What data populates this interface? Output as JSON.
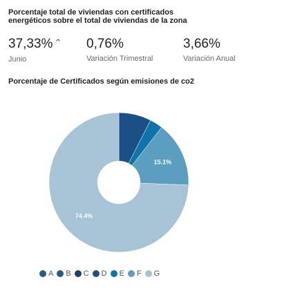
{
  "header": {
    "title": "Porcentaje total de viviendas con certificados energéticos sobre el total de viviendas de la zona"
  },
  "stats": [
    {
      "value": "37,33%",
      "trend_icon": "caret-up-icon",
      "trend_glyph": "⌃",
      "label": "Junio"
    },
    {
      "value": "0,76%",
      "label": "Variación Trimestral"
    },
    {
      "value": "3,66%",
      "label": "Variación Anual"
    }
  ],
  "chart_data": {
    "type": "pie",
    "title": "Porcentaje de Certificados según emisiones de co2",
    "donut": true,
    "start_angle_deg": 0,
    "slices": [
      {
        "name": "A",
        "value": 0,
        "color": "#2a5a8c"
      },
      {
        "name": "B",
        "value": 0,
        "color": "#2a5a8c"
      },
      {
        "name": "C",
        "value": 0,
        "color": "#1c3f6e"
      },
      {
        "name": "D",
        "value": 7.5,
        "color": "#1c4f85",
        "label": ""
      },
      {
        "name": "E",
        "value": 3.0,
        "color": "#0f74a9",
        "label": ""
      },
      {
        "name": "F",
        "value": 15.1,
        "color": "#5b9ec0",
        "label": "15.1%"
      },
      {
        "name": "G",
        "value": 74.4,
        "color": "#a7c4d6",
        "label": "74.4%"
      }
    ],
    "legend": {
      "position": "bottom-left",
      "items": [
        "A",
        "B",
        "C",
        "D",
        "E",
        "F",
        "G"
      ]
    }
  }
}
